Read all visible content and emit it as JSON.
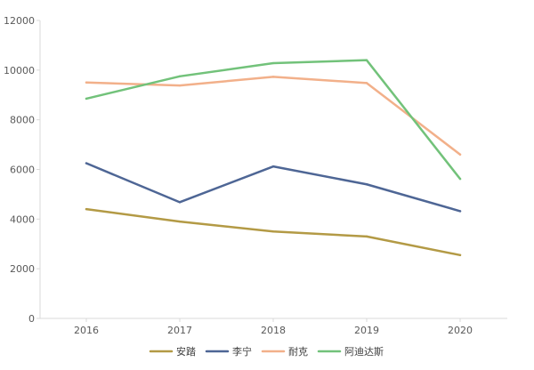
{
  "chart_data": {
    "type": "line",
    "title": "",
    "xlabel": "",
    "ylabel": "",
    "categories": [
      "2016",
      "2017",
      "2018",
      "2019",
      "2020"
    ],
    "ylim": [
      0,
      12000
    ],
    "yticks": [
      0,
      2000,
      4000,
      6000,
      8000,
      10000,
      12000
    ],
    "grid": false,
    "legend_position": "bottom",
    "series": [
      {
        "name": "安踏",
        "color": "#B39A45",
        "values": [
          4400,
          3900,
          3500,
          3300,
          2550
        ]
      },
      {
        "name": "李宁",
        "color": "#4E6695",
        "values": [
          6250,
          4680,
          6120,
          5400,
          4320
        ]
      },
      {
        "name": "耐克",
        "color": "#F2B08A",
        "values": [
          9500,
          9380,
          9730,
          9480,
          6600
        ]
      },
      {
        "name": "阿迪达斯",
        "color": "#72C27A",
        "values": [
          8850,
          9750,
          10280,
          10400,
          5620
        ]
      }
    ]
  }
}
